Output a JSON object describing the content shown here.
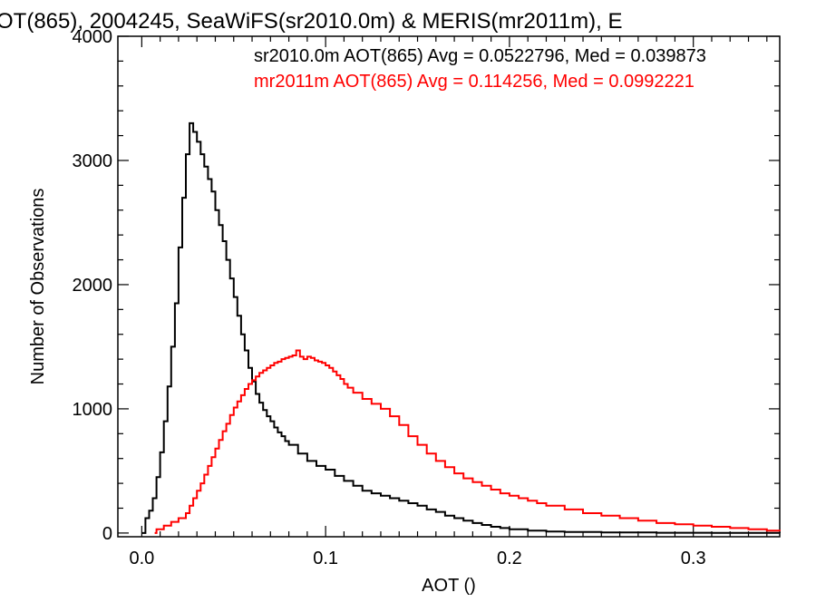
{
  "chart_data": {
    "type": "line",
    "title": "OT(865), 2004245, SeaWiFS(sr2010.0m) & MERIS(mr2011m), E",
    "xlabel": "AOT ()",
    "ylabel": "Number of Observations",
    "xlim": [
      -0.013,
      0.347
    ],
    "ylim": [
      -30,
      4000
    ],
    "xticks": [
      0.0,
      0.1,
      0.2,
      0.3
    ],
    "xtick_labels": [
      "0.0",
      "0.1",
      "0.2",
      "0.3"
    ],
    "yticks": [
      0,
      1000,
      2000,
      3000,
      4000
    ],
    "ytick_labels": [
      "0",
      "1000",
      "2000",
      "3000",
      "4000"
    ],
    "step": true,
    "grid": false,
    "annotations": [
      {
        "text": "sr2010.0m AOT(865) Avg = 0.0522796, Med = 0.039873",
        "color": "#000000"
      },
      {
        "text": "mr2011m AOT(865) Avg = 0.114256, Med = 0.0992221",
        "color": "#ff0000"
      }
    ],
    "series": [
      {
        "color": "#000000",
        "points": [
          [
            0.0,
            0
          ],
          [
            0.002,
            120
          ],
          [
            0.004,
            180
          ],
          [
            0.006,
            280
          ],
          [
            0.008,
            450
          ],
          [
            0.01,
            650
          ],
          [
            0.012,
            900
          ],
          [
            0.014,
            1180
          ],
          [
            0.016,
            1500
          ],
          [
            0.018,
            1850
          ],
          [
            0.02,
            2300
          ],
          [
            0.022,
            2700
          ],
          [
            0.024,
            3050
          ],
          [
            0.026,
            3300
          ],
          [
            0.028,
            3230
          ],
          [
            0.03,
            3150
          ],
          [
            0.032,
            3050
          ],
          [
            0.034,
            2950
          ],
          [
            0.036,
            2850
          ],
          [
            0.038,
            2750
          ],
          [
            0.04,
            2600
          ],
          [
            0.042,
            2480
          ],
          [
            0.044,
            2350
          ],
          [
            0.046,
            2200
          ],
          [
            0.048,
            2050
          ],
          [
            0.05,
            1900
          ],
          [
            0.052,
            1750
          ],
          [
            0.054,
            1600
          ],
          [
            0.056,
            1470
          ],
          [
            0.058,
            1330
          ],
          [
            0.06,
            1220
          ],
          [
            0.062,
            1120
          ],
          [
            0.064,
            1050
          ],
          [
            0.066,
            990
          ],
          [
            0.068,
            940
          ],
          [
            0.07,
            900
          ],
          [
            0.072,
            850
          ],
          [
            0.074,
            810
          ],
          [
            0.076,
            780
          ],
          [
            0.078,
            740
          ],
          [
            0.08,
            710
          ],
          [
            0.085,
            640
          ],
          [
            0.09,
            580
          ],
          [
            0.095,
            540
          ],
          [
            0.1,
            510
          ],
          [
            0.105,
            460
          ],
          [
            0.11,
            420
          ],
          [
            0.115,
            380
          ],
          [
            0.12,
            340
          ],
          [
            0.125,
            320
          ],
          [
            0.13,
            300
          ],
          [
            0.135,
            280
          ],
          [
            0.14,
            260
          ],
          [
            0.145,
            240
          ],
          [
            0.15,
            220
          ],
          [
            0.155,
            190
          ],
          [
            0.16,
            170
          ],
          [
            0.165,
            140
          ],
          [
            0.17,
            120
          ],
          [
            0.175,
            100
          ],
          [
            0.18,
            80
          ],
          [
            0.185,
            65
          ],
          [
            0.19,
            50
          ],
          [
            0.195,
            40
          ],
          [
            0.2,
            30
          ],
          [
            0.21,
            20
          ],
          [
            0.22,
            12
          ],
          [
            0.23,
            8
          ],
          [
            0.25,
            4
          ],
          [
            0.28,
            2
          ],
          [
            0.31,
            1
          ],
          [
            0.347,
            0
          ]
        ]
      },
      {
        "color": "#ff0000",
        "points": [
          [
            0.007,
            0
          ],
          [
            0.008,
            30
          ],
          [
            0.012,
            60
          ],
          [
            0.016,
            90
          ],
          [
            0.02,
            120
          ],
          [
            0.024,
            160
          ],
          [
            0.026,
            220
          ],
          [
            0.028,
            280
          ],
          [
            0.03,
            340
          ],
          [
            0.032,
            400
          ],
          [
            0.034,
            470
          ],
          [
            0.036,
            540
          ],
          [
            0.038,
            610
          ],
          [
            0.04,
            680
          ],
          [
            0.042,
            750
          ],
          [
            0.044,
            820
          ],
          [
            0.046,
            880
          ],
          [
            0.048,
            950
          ],
          [
            0.05,
            1010
          ],
          [
            0.052,
            1060
          ],
          [
            0.054,
            1110
          ],
          [
            0.056,
            1160
          ],
          [
            0.058,
            1200
          ],
          [
            0.06,
            1230
          ],
          [
            0.062,
            1260
          ],
          [
            0.064,
            1290
          ],
          [
            0.066,
            1310
          ],
          [
            0.068,
            1330
          ],
          [
            0.07,
            1350
          ],
          [
            0.072,
            1370
          ],
          [
            0.074,
            1380
          ],
          [
            0.076,
            1400
          ],
          [
            0.078,
            1410
          ],
          [
            0.08,
            1420
          ],
          [
            0.082,
            1430
          ],
          [
            0.084,
            1470
          ],
          [
            0.086,
            1420
          ],
          [
            0.088,
            1400
          ],
          [
            0.09,
            1420
          ],
          [
            0.092,
            1410
          ],
          [
            0.094,
            1390
          ],
          [
            0.096,
            1380
          ],
          [
            0.098,
            1370
          ],
          [
            0.1,
            1350
          ],
          [
            0.102,
            1330
          ],
          [
            0.104,
            1300
          ],
          [
            0.106,
            1270
          ],
          [
            0.108,
            1240
          ],
          [
            0.11,
            1200
          ],
          [
            0.112,
            1170
          ],
          [
            0.115,
            1130
          ],
          [
            0.12,
            1080
          ],
          [
            0.125,
            1040
          ],
          [
            0.13,
            1000
          ],
          [
            0.135,
            940
          ],
          [
            0.14,
            870
          ],
          [
            0.145,
            780
          ],
          [
            0.15,
            710
          ],
          [
            0.155,
            640
          ],
          [
            0.16,
            580
          ],
          [
            0.165,
            530
          ],
          [
            0.17,
            480
          ],
          [
            0.175,
            440
          ],
          [
            0.18,
            410
          ],
          [
            0.185,
            380
          ],
          [
            0.19,
            350
          ],
          [
            0.195,
            320
          ],
          [
            0.2,
            300
          ],
          [
            0.205,
            280
          ],
          [
            0.21,
            260
          ],
          [
            0.215,
            240
          ],
          [
            0.22,
            220
          ],
          [
            0.23,
            190
          ],
          [
            0.24,
            160
          ],
          [
            0.25,
            140
          ],
          [
            0.26,
            120
          ],
          [
            0.27,
            100
          ],
          [
            0.28,
            80
          ],
          [
            0.29,
            70
          ],
          [
            0.3,
            60
          ],
          [
            0.31,
            50
          ],
          [
            0.32,
            40
          ],
          [
            0.33,
            30
          ],
          [
            0.34,
            20
          ],
          [
            0.347,
            15
          ]
        ]
      }
    ]
  }
}
